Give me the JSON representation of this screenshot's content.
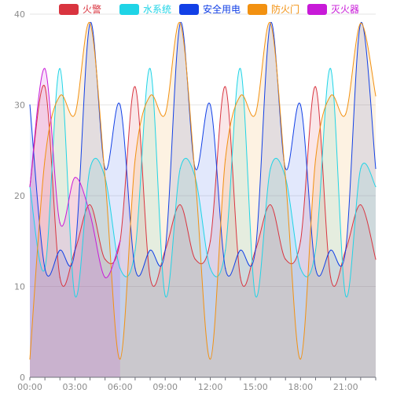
{
  "chart_data": {
    "type": "area",
    "x_ticks": [
      "00:00",
      "03:00",
      "06:00",
      "09:00",
      "12:00",
      "15:00",
      "18:00",
      "21:00"
    ],
    "xlim": [
      "00:00",
      "23:00"
    ],
    "ylim": [
      0,
      40
    ],
    "y_ticks": [
      "0",
      "10",
      "20",
      "30",
      "40"
    ],
    "grid": true,
    "legend_position": "top",
    "series": [
      {
        "name": "火警",
        "color": "#d9343f",
        "x": [
          "00:00",
          "01:00",
          "02:00",
          "03:00",
          "04:00",
          "05:00",
          "06:00",
          "07:00",
          "08:00",
          "09:00",
          "10:00",
          "11:00",
          "12:00",
          "13:00",
          "14:00",
          "15:00",
          "16:00",
          "17:00",
          "18:00",
          "19:00",
          "20:00",
          "21:00",
          "22:00",
          "23:00"
        ],
        "values": [
          21,
          32,
          11,
          14,
          19,
          13,
          15,
          32,
          11,
          14,
          19,
          13,
          15,
          32,
          11,
          14,
          19,
          13,
          15,
          32,
          11,
          14,
          19,
          13
        ]
      },
      {
        "name": "水系统",
        "color": "#1fd4e6",
        "x": [
          "00:00",
          "01:00",
          "02:00",
          "03:00",
          "04:00",
          "05:00",
          "06:00",
          "07:00",
          "08:00",
          "09:00",
          "10:00",
          "11:00",
          "12:00",
          "13:00",
          "14:00",
          "15:00",
          "16:00",
          "17:00",
          "18:00",
          "19:00",
          "20:00",
          "21:00",
          "22:00",
          "23:00"
        ],
        "values": [
          21,
          12,
          34,
          9,
          23,
          22,
          12,
          14,
          34,
          9,
          23,
          22,
          12,
          14,
          34,
          9,
          23,
          22,
          12,
          14,
          34,
          9,
          23,
          21
        ]
      },
      {
        "name": "安全用电",
        "color": "#1240e6",
        "x": [
          "00:00",
          "01:00",
          "02:00",
          "03:00",
          "04:00",
          "05:00",
          "06:00",
          "07:00",
          "08:00",
          "09:00",
          "10:00",
          "11:00",
          "12:00",
          "13:00",
          "14:00",
          "15:00",
          "16:00",
          "17:00",
          "18:00",
          "19:00",
          "20:00",
          "21:00",
          "22:00",
          "23:00"
        ],
        "values": [
          30,
          12,
          14,
          14,
          39,
          23,
          30,
          12,
          14,
          14,
          39,
          23,
          30,
          12,
          14,
          14,
          39,
          23,
          30,
          12,
          14,
          14,
          39,
          23
        ]
      },
      {
        "name": "防火门",
        "color": "#f29111",
        "x": [
          "00:00",
          "01:00",
          "02:00",
          "03:00",
          "04:00",
          "05:00",
          "06:00",
          "07:00",
          "08:00",
          "09:00",
          "10:00",
          "11:00",
          "12:00",
          "13:00",
          "14:00",
          "15:00",
          "16:00",
          "17:00",
          "18:00",
          "19:00",
          "20:00",
          "21:00",
          "22:00",
          "23:00"
        ],
        "values": [
          2,
          24,
          31,
          29,
          39,
          22,
          2,
          24,
          31,
          29,
          39,
          22,
          2,
          24,
          31,
          29,
          39,
          22,
          2,
          24,
          31,
          29,
          39,
          31
        ]
      },
      {
        "name": "灭火器",
        "color": "#c81ad8",
        "x": [
          "00:00",
          "01:00",
          "02:00",
          "03:00",
          "04:00",
          "05:00",
          "06:00"
        ],
        "values": [
          21,
          34,
          17,
          22,
          18,
          11,
          15
        ]
      }
    ]
  }
}
